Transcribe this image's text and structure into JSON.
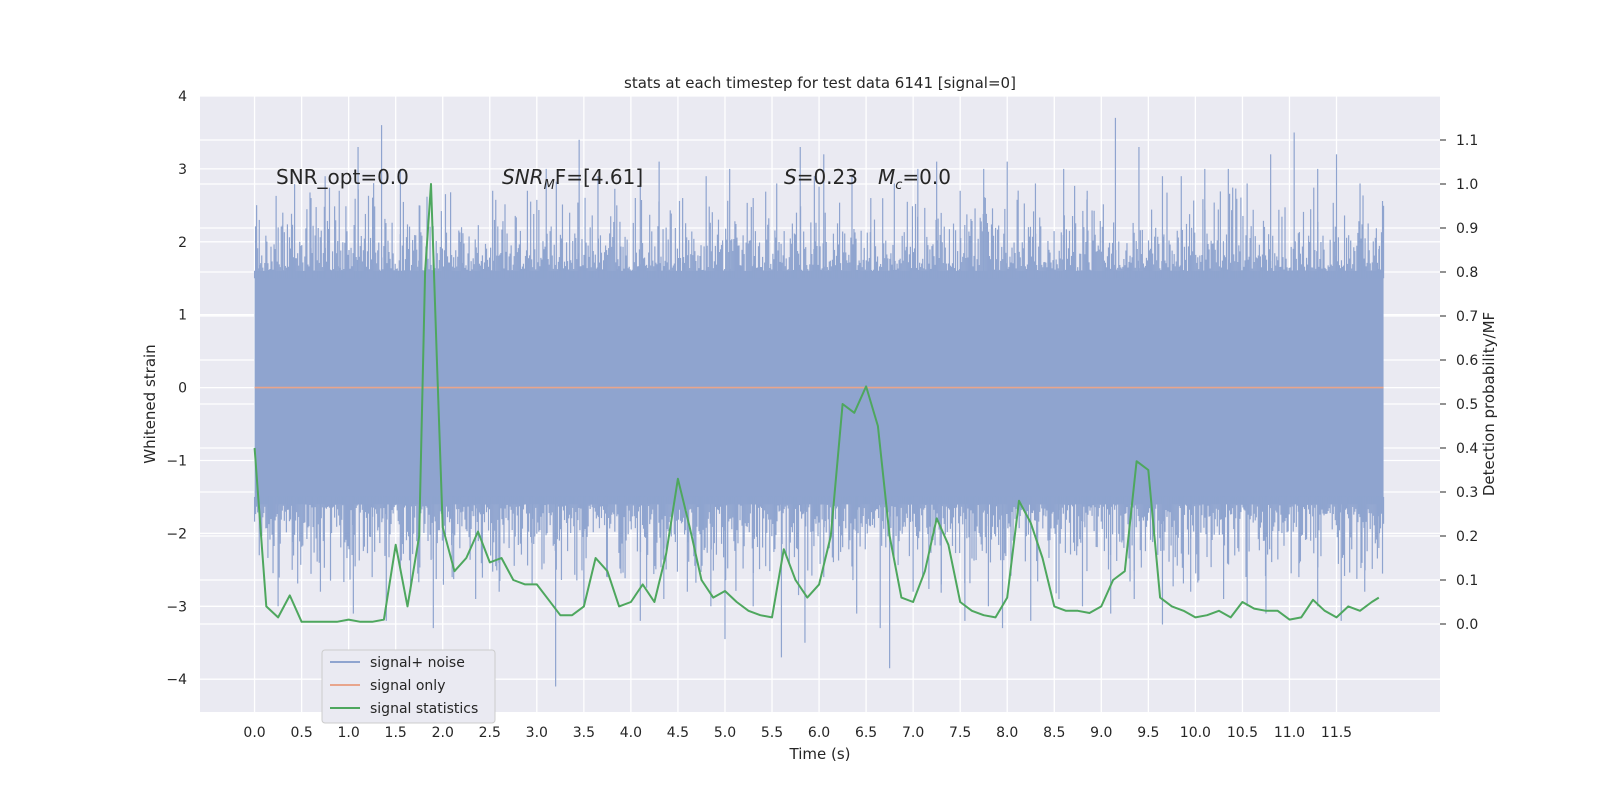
{
  "chart_data": {
    "type": "line",
    "title": "stats at each timestep for test data 6141 [signal=0]",
    "xlabel": "Time (s)",
    "ylabel": "Whitened strain",
    "ylabel_right": "Detection probability/MF",
    "xlim": [
      -0.58,
      12.6
    ],
    "ylim": [
      -4.45,
      4.0
    ],
    "ylim_right": [
      -0.2,
      1.2
    ],
    "x_ticks": [
      "0.0",
      "0.5",
      "1.0",
      "1.5",
      "2.0",
      "2.5",
      "3.0",
      "3.5",
      "4.0",
      "4.5",
      "5.0",
      "5.5",
      "6.0",
      "6.5",
      "7.0",
      "7.5",
      "8.0",
      "8.5",
      "9.0",
      "9.5",
      "10.0",
      "10.5",
      "11.0",
      "11.5"
    ],
    "y_ticks": [
      "4",
      "3",
      "2",
      "1",
      "0",
      "−1",
      "−2",
      "−3",
      "−4"
    ],
    "y_ticks_right": [
      "1.1",
      "1.0",
      "0.9",
      "0.8",
      "0.7",
      "0.6",
      "0.5",
      "0.4",
      "0.3",
      "0.2",
      "0.1",
      "0.0"
    ],
    "grid": true,
    "legend_position": "lower-left",
    "annotations": {
      "snr_opt": "SNR_opt=0.0",
      "snr_mf_sym": "SNR",
      "snr_mf_sub": "M",
      "snr_mf_rest": "F=[4.61]",
      "s_sym": "S",
      "s_val": "=0.23",
      "mc_sym": "M",
      "mc_sub": "c",
      "mc_val": "=0.0"
    },
    "series": [
      {
        "name": "signal+ noise",
        "color": "#8fa4cf",
        "duration": 12.0,
        "band_lower": -1.6,
        "band_upper": 1.6,
        "upper_spikes": [
          [
            0.05,
            2.3
          ],
          [
            0.3,
            2.4
          ],
          [
            0.6,
            2.6
          ],
          [
            0.75,
            2.9
          ],
          [
            0.9,
            2.7
          ],
          [
            1.1,
            3.3
          ],
          [
            1.35,
            3.6
          ],
          [
            1.55,
            3.0
          ],
          [
            1.75,
            2.5
          ],
          [
            2.2,
            2.2
          ],
          [
            2.55,
            2.3
          ],
          [
            2.9,
            2.7
          ],
          [
            3.1,
            3.0
          ],
          [
            3.45,
            3.4
          ],
          [
            3.65,
            2.9
          ],
          [
            3.85,
            2.5
          ],
          [
            4.1,
            3.0
          ],
          [
            4.3,
            3.1
          ],
          [
            4.55,
            2.6
          ],
          [
            4.8,
            2.9
          ],
          [
            5.05,
            3.0
          ],
          [
            5.3,
            2.6
          ],
          [
            5.55,
            2.8
          ],
          [
            5.8,
            3.3
          ],
          [
            5.95,
            2.9
          ],
          [
            6.05,
            3.2
          ],
          [
            6.35,
            2.9
          ],
          [
            6.55,
            2.6
          ],
          [
            6.8,
            2.8
          ],
          [
            7.05,
            3.0
          ],
          [
            7.25,
            3.1
          ],
          [
            7.5,
            2.7
          ],
          [
            7.75,
            3.0
          ],
          [
            8.0,
            3.1
          ],
          [
            8.3,
            2.8
          ],
          [
            8.6,
            3.0
          ],
          [
            8.85,
            2.7
          ],
          [
            9.15,
            3.7
          ],
          [
            9.4,
            3.3
          ],
          [
            9.65,
            2.9
          ],
          [
            9.85,
            2.9
          ],
          [
            10.1,
            3.0
          ],
          [
            10.35,
            3.0
          ],
          [
            10.55,
            2.8
          ],
          [
            10.8,
            3.2
          ],
          [
            11.05,
            3.5
          ],
          [
            11.3,
            3.0
          ],
          [
            11.5,
            3.2
          ],
          [
            11.75,
            2.8
          ],
          [
            11.95,
            1.9
          ]
        ],
        "lower_spikes": [
          [
            0.05,
            -2.3
          ],
          [
            0.25,
            -3.0
          ],
          [
            0.4,
            -2.5
          ],
          [
            0.7,
            -2.8
          ],
          [
            1.05,
            -3.1
          ],
          [
            1.25,
            -2.6
          ],
          [
            1.4,
            -3.2
          ],
          [
            1.9,
            -3.3
          ],
          [
            2.1,
            -2.6
          ],
          [
            2.35,
            -2.9
          ],
          [
            2.6,
            -2.8
          ],
          [
            2.95,
            -2.7
          ],
          [
            3.2,
            -4.1
          ],
          [
            3.5,
            -3.0
          ],
          [
            3.75,
            -2.6
          ],
          [
            4.1,
            -3.2
          ],
          [
            4.35,
            -2.9
          ],
          [
            4.6,
            -2.8
          ],
          [
            4.85,
            -3.0
          ],
          [
            5.0,
            -3.45
          ],
          [
            5.3,
            -3.0
          ],
          [
            5.6,
            -3.7
          ],
          [
            5.85,
            -3.5
          ],
          [
            6.05,
            -2.6
          ],
          [
            6.4,
            -3.1
          ],
          [
            6.65,
            -3.3
          ],
          [
            6.75,
            -3.85
          ],
          [
            7.0,
            -2.8
          ],
          [
            7.3,
            -2.7
          ],
          [
            7.55,
            -3.2
          ],
          [
            7.8,
            -3.0
          ],
          [
            7.95,
            -3.3
          ],
          [
            8.25,
            -3.2
          ],
          [
            8.55,
            -2.9
          ],
          [
            8.8,
            -3.0
          ],
          [
            9.1,
            -3.1
          ],
          [
            9.35,
            -2.9
          ],
          [
            9.65,
            -3.25
          ],
          [
            9.95,
            -2.8
          ],
          [
            10.3,
            -2.9
          ],
          [
            10.55,
            -3.0
          ],
          [
            10.75,
            -3.1
          ],
          [
            11.1,
            -2.6
          ],
          [
            11.3,
            -3.0
          ],
          [
            11.55,
            -3.2
          ],
          [
            11.8,
            -2.8
          ],
          [
            11.95,
            -2.2
          ]
        ]
      },
      {
        "name": "signal only",
        "color": "#e8a58c",
        "x": [
          0.0,
          12.0
        ],
        "y": [
          0.0,
          0.0
        ]
      },
      {
        "name": "signal statistics",
        "color": "#4ea75e",
        "x": [
          0.0,
          0.125,
          0.25,
          0.375,
          0.5,
          0.625,
          0.75,
          0.875,
          1.0,
          1.125,
          1.25,
          1.375,
          1.5,
          1.625,
          1.75,
          1.8125,
          1.875,
          1.9375,
          2.0,
          2.125,
          2.25,
          2.375,
          2.5,
          2.625,
          2.75,
          2.875,
          3.0,
          3.125,
          3.25,
          3.375,
          3.5,
          3.625,
          3.75,
          3.875,
          4.0,
          4.125,
          4.25,
          4.375,
          4.5,
          4.625,
          4.75,
          4.875,
          5.0,
          5.125,
          5.25,
          5.375,
          5.5,
          5.625,
          5.75,
          5.875,
          6.0,
          6.125,
          6.25,
          6.375,
          6.5,
          6.625,
          6.75,
          6.875,
          7.0,
          7.125,
          7.25,
          7.375,
          7.5,
          7.625,
          7.75,
          7.875,
          8.0,
          8.125,
          8.25,
          8.375,
          8.5,
          8.625,
          8.75,
          8.875,
          9.0,
          9.125,
          9.25,
          9.375,
          9.5,
          9.625,
          9.75,
          9.875,
          10.0,
          10.125,
          10.25,
          10.375,
          10.5,
          10.625,
          10.75,
          10.875,
          11.0,
          11.125,
          11.25,
          11.375,
          11.5,
          11.625,
          11.75,
          11.875,
          11.95
        ],
        "y": [
          0.4,
          0.04,
          0.015,
          0.065,
          0.005,
          0.005,
          0.005,
          0.005,
          0.01,
          0.005,
          0.005,
          0.01,
          0.18,
          0.04,
          0.2,
          0.8,
          1.0,
          0.6,
          0.22,
          0.12,
          0.15,
          0.21,
          0.14,
          0.15,
          0.1,
          0.09,
          0.09,
          0.055,
          0.02,
          0.02,
          0.04,
          0.15,
          0.12,
          0.04,
          0.05,
          0.09,
          0.05,
          0.16,
          0.33,
          0.22,
          0.1,
          0.06,
          0.075,
          0.05,
          0.03,
          0.02,
          0.015,
          0.17,
          0.1,
          0.06,
          0.09,
          0.2,
          0.5,
          0.48,
          0.54,
          0.45,
          0.2,
          0.06,
          0.05,
          0.12,
          0.24,
          0.18,
          0.05,
          0.03,
          0.02,
          0.015,
          0.06,
          0.28,
          0.23,
          0.15,
          0.04,
          0.03,
          0.03,
          0.025,
          0.04,
          0.1,
          0.12,
          0.37,
          0.35,
          0.06,
          0.04,
          0.03,
          0.015,
          0.02,
          0.03,
          0.015,
          0.05,
          0.035,
          0.03,
          0.03,
          0.01,
          0.015,
          0.055,
          0.03,
          0.015,
          0.04,
          0.03,
          0.05,
          0.06
        ]
      }
    ]
  }
}
